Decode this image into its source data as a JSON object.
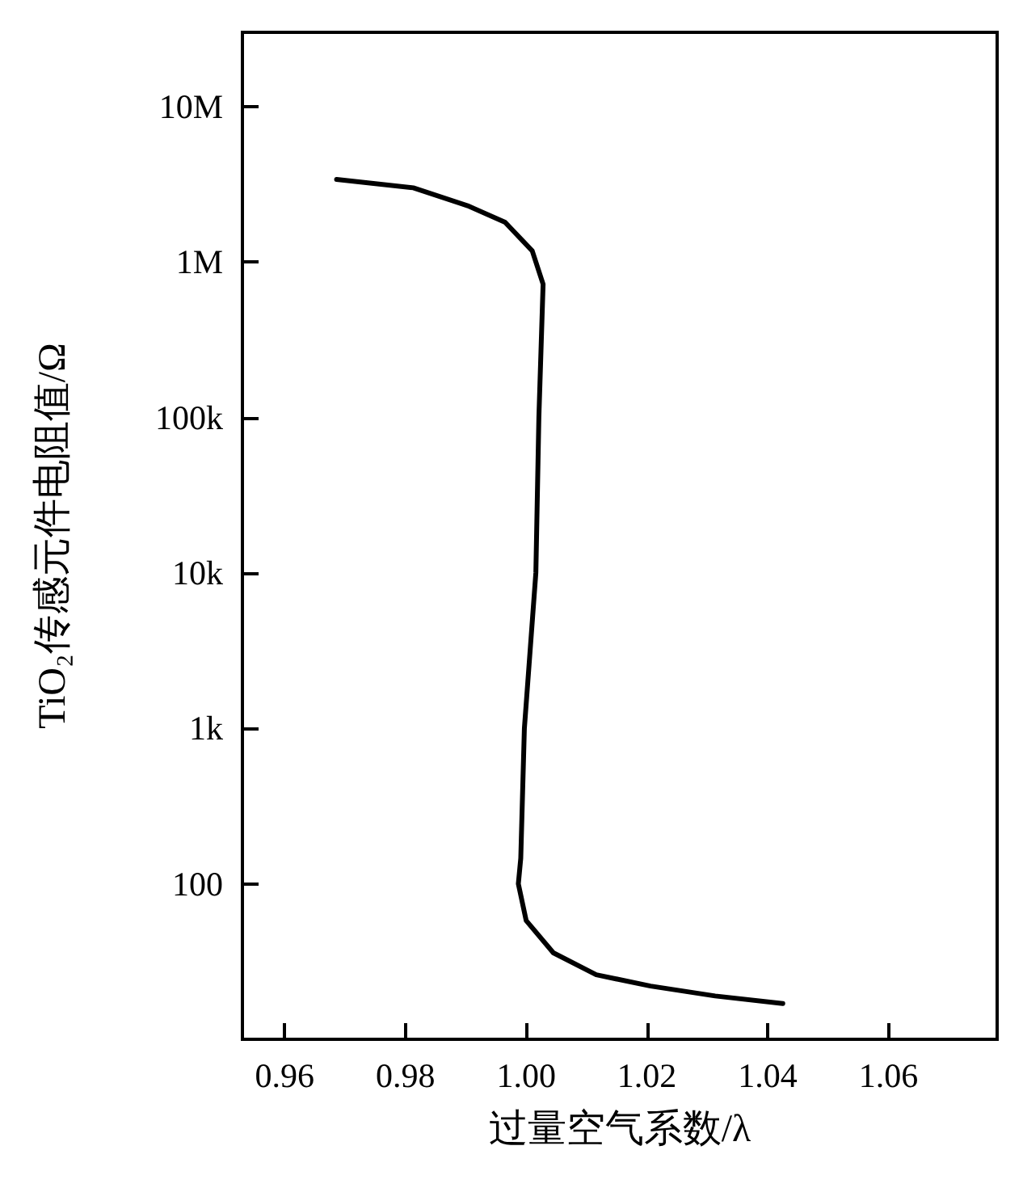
{
  "chart_data": {
    "type": "line",
    "xlabel": "过量空气系数/λ",
    "ylabel": "TiO₂传感元件电阻值/Ω",
    "log": "y",
    "grid": false,
    "marker": "none",
    "line_style": "solid",
    "xlim": [
      0.953,
      1.078
    ],
    "xticks": [
      {
        "value": 0.96,
        "label": "0.96"
      },
      {
        "value": 0.98,
        "label": "0.98"
      },
      {
        "value": 1,
        "label": "1.00"
      },
      {
        "value": 1.02,
        "label": "1.02"
      },
      {
        "value": 1.04,
        "label": "1.04"
      },
      {
        "value": 1.06,
        "label": "1.06"
      }
    ],
    "ylim": [
      10,
      30000000
    ],
    "yticks": [
      {
        "value": 100,
        "label": "100"
      },
      {
        "value": 1000,
        "label": "1k"
      },
      {
        "value": 10000,
        "label": "10k"
      },
      {
        "value": 100000,
        "label": "100k"
      },
      {
        "value": 1000000,
        "label": "1M"
      },
      {
        "value": 10000000,
        "label": "10M"
      }
    ],
    "series": [
      {
        "color": "#000000",
        "x": [
          0.9686,
          0.9813,
          0.9903,
          0.9965,
          1.001,
          1.0028,
          1.0021,
          1.0016,
          0.9997,
          0.9991,
          0.9987,
          1.0,
          1.0045,
          1.0116,
          1.0206,
          1.0313,
          1.0425
        ],
        "values": [
          3400000,
          3000000,
          2300000,
          1800000,
          1180000,
          720000,
          100000,
          10000,
          1000,
          146,
          100,
          58,
          36,
          26,
          22,
          19,
          17
        ]
      }
    ]
  }
}
